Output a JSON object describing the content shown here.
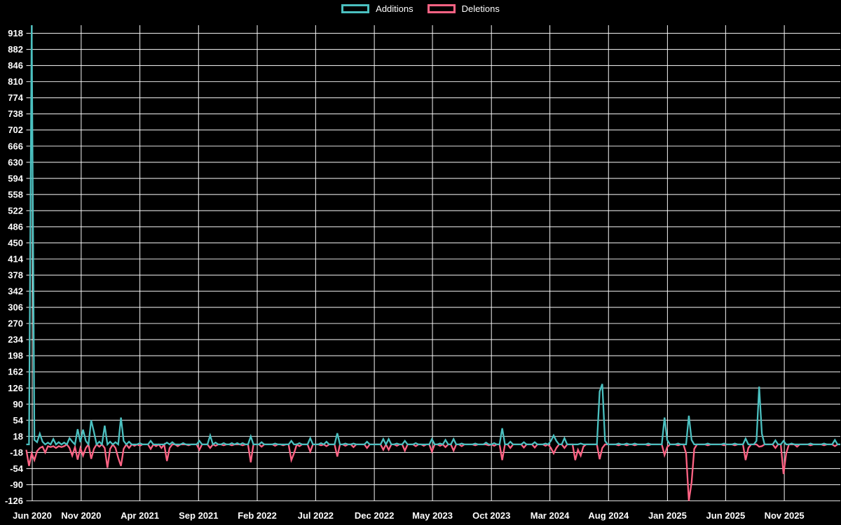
{
  "chart_data": {
    "type": "line",
    "title": "",
    "background_color": "#000000",
    "grid_color": "#ffffff",
    "grid_opacity": 0.88,
    "text_color": "#ffffff",
    "legend_position": "top-center",
    "n_points": 302,
    "point_unit": "week",
    "x_axis": {
      "label": "",
      "ticks": [
        {
          "label": "Jun 2020",
          "week_pos": 2.2
        },
        {
          "label": "Nov 2020",
          "week_pos": 20.3
        },
        {
          "label": "Apr 2021",
          "week_pos": 42.0
        },
        {
          "label": "Sep 2021",
          "week_pos": 63.7
        },
        {
          "label": "Feb 2022",
          "week_pos": 85.4
        },
        {
          "label": "Jul 2022",
          "week_pos": 107.0
        },
        {
          "label": "Dec 2022",
          "week_pos": 128.7
        },
        {
          "label": "May 2023",
          "week_pos": 150.2
        },
        {
          "label": "Oct 2023",
          "week_pos": 172.0
        },
        {
          "label": "Mar 2024",
          "week_pos": 193.6
        },
        {
          "label": "Aug 2024",
          "week_pos": 215.3
        },
        {
          "label": "Jan 2025",
          "week_pos": 237.1
        },
        {
          "label": "Jun 2025",
          "week_pos": 258.6
        },
        {
          "label": "Nov 2025",
          "week_pos": 280.3
        }
      ]
    },
    "y_axis": {
      "label": "",
      "min": -126,
      "max": 936,
      "tick_values": [
        918,
        882,
        846,
        810,
        774,
        738,
        702,
        666,
        630,
        594,
        558,
        522,
        486,
        450,
        414,
        378,
        342,
        306,
        270,
        234,
        198,
        162,
        126,
        90,
        54,
        18,
        -18,
        -54,
        -90,
        -126
      ]
    },
    "series": [
      {
        "name": "Additions",
        "color": "#4bc0c0",
        "default_value": 0,
        "points_nonzero": [
          [
            2,
            936
          ],
          [
            3,
            10
          ],
          [
            4,
            5
          ],
          [
            5,
            24
          ],
          [
            6,
            6
          ],
          [
            8,
            4
          ],
          [
            10,
            12
          ],
          [
            12,
            5
          ],
          [
            14,
            4
          ],
          [
            16,
            14
          ],
          [
            17,
            6
          ],
          [
            19,
            34
          ],
          [
            20,
            5
          ],
          [
            21,
            33
          ],
          [
            22,
            8
          ],
          [
            24,
            54
          ],
          [
            25,
            28
          ],
          [
            27,
            6
          ],
          [
            29,
            42
          ],
          [
            31,
            6
          ],
          [
            33,
            5
          ],
          [
            35,
            60
          ],
          [
            36,
            8
          ],
          [
            38,
            6
          ],
          [
            42,
            3
          ],
          [
            46,
            8
          ],
          [
            52,
            4
          ],
          [
            54,
            5
          ],
          [
            58,
            3
          ],
          [
            64,
            8
          ],
          [
            68,
            20
          ],
          [
            70,
            4
          ],
          [
            73,
            3
          ],
          [
            76,
            3
          ],
          [
            78,
            3
          ],
          [
            80,
            3
          ],
          [
            83,
            18
          ],
          [
            87,
            5
          ],
          [
            92,
            2
          ],
          [
            98,
            8
          ],
          [
            101,
            3
          ],
          [
            105,
            14
          ],
          [
            109,
            3
          ],
          [
            111,
            6
          ],
          [
            115,
            25
          ],
          [
            118,
            2
          ],
          [
            121,
            2
          ],
          [
            126,
            6
          ],
          [
            132,
            12
          ],
          [
            134,
            12
          ],
          [
            137,
            2
          ],
          [
            140,
            8
          ],
          [
            144,
            3
          ],
          [
            150,
            12
          ],
          [
            153,
            2
          ],
          [
            155,
            10
          ],
          [
            158,
            12
          ],
          [
            161,
            2
          ],
          [
            166,
            2
          ],
          [
            170,
            4
          ],
          [
            173,
            3
          ],
          [
            176,
            36
          ],
          [
            179,
            6
          ],
          [
            184,
            5
          ],
          [
            188,
            5
          ],
          [
            192,
            2
          ],
          [
            194,
            8
          ],
          [
            195,
            20
          ],
          [
            196,
            8
          ],
          [
            199,
            14
          ],
          [
            205,
            2
          ],
          [
            212,
            118
          ],
          [
            213,
            135
          ],
          [
            214,
            8
          ],
          [
            219,
            2
          ],
          [
            222,
            2
          ],
          [
            225,
            2
          ],
          [
            230,
            2
          ],
          [
            236,
            60
          ],
          [
            237,
            10
          ],
          [
            241,
            2
          ],
          [
            245,
            64
          ],
          [
            246,
            10
          ],
          [
            252,
            2
          ],
          [
            258,
            2
          ],
          [
            262,
            2
          ],
          [
            266,
            13
          ],
          [
            270,
            8
          ],
          [
            271,
            129
          ],
          [
            272,
            24
          ],
          [
            277,
            9
          ],
          [
            280,
            8
          ],
          [
            283,
            2
          ],
          [
            290,
            2
          ],
          [
            295,
            2
          ],
          [
            299,
            10
          ]
        ]
      },
      {
        "name": "Deletions",
        "color": "#ff6384",
        "default_value": 0,
        "points_nonzero": [
          [
            0,
            -12
          ],
          [
            1,
            -48
          ],
          [
            2,
            -20
          ],
          [
            3,
            -35
          ],
          [
            4,
            -15
          ],
          [
            5,
            -8
          ],
          [
            6,
            -5
          ],
          [
            7,
            -18
          ],
          [
            8,
            -4
          ],
          [
            9,
            -6
          ],
          [
            10,
            -4
          ],
          [
            11,
            -8
          ],
          [
            12,
            -4
          ],
          [
            13,
            -6
          ],
          [
            14,
            -4
          ],
          [
            16,
            -8
          ],
          [
            17,
            -25
          ],
          [
            18,
            -6
          ],
          [
            19,
            -34
          ],
          [
            20,
            -8
          ],
          [
            21,
            -25
          ],
          [
            22,
            -8
          ],
          [
            24,
            -32
          ],
          [
            25,
            -10
          ],
          [
            27,
            -5
          ],
          [
            29,
            -8
          ],
          [
            30,
            -52
          ],
          [
            31,
            -10
          ],
          [
            33,
            -8
          ],
          [
            34,
            -30
          ],
          [
            35,
            -48
          ],
          [
            36,
            -10
          ],
          [
            38,
            -8
          ],
          [
            40,
            -3
          ],
          [
            42,
            -3
          ],
          [
            46,
            -10
          ],
          [
            48,
            -4
          ],
          [
            50,
            -8
          ],
          [
            52,
            -37
          ],
          [
            53,
            -8
          ],
          [
            56,
            -4
          ],
          [
            60,
            -2
          ],
          [
            64,
            -12
          ],
          [
            68,
            -8
          ],
          [
            70,
            -3
          ],
          [
            73,
            -2
          ],
          [
            76,
            -2
          ],
          [
            80,
            -2
          ],
          [
            83,
            -40
          ],
          [
            87,
            -5
          ],
          [
            92,
            -3
          ],
          [
            95,
            -2
          ],
          [
            98,
            -35
          ],
          [
            99,
            -20
          ],
          [
            101,
            -4
          ],
          [
            105,
            -16
          ],
          [
            109,
            -2
          ],
          [
            111,
            -4
          ],
          [
            115,
            -27
          ],
          [
            118,
            -3
          ],
          [
            121,
            -6
          ],
          [
            126,
            -8
          ],
          [
            132,
            -12
          ],
          [
            134,
            -12
          ],
          [
            137,
            -3
          ],
          [
            140,
            -14
          ],
          [
            144,
            -4
          ],
          [
            147,
            -3
          ],
          [
            150,
            -16
          ],
          [
            153,
            -3
          ],
          [
            155,
            -6
          ],
          [
            158,
            -14
          ],
          [
            161,
            -4
          ],
          [
            166,
            -2
          ],
          [
            171,
            -2
          ],
          [
            173,
            -3
          ],
          [
            176,
            -35
          ],
          [
            179,
            -8
          ],
          [
            184,
            -7
          ],
          [
            188,
            -7
          ],
          [
            192,
            -3
          ],
          [
            194,
            -8
          ],
          [
            195,
            -20
          ],
          [
            196,
            -8
          ],
          [
            199,
            -8
          ],
          [
            203,
            -35
          ],
          [
            204,
            -12
          ],
          [
            205,
            -25
          ],
          [
            206,
            -5
          ],
          [
            212,
            -33
          ],
          [
            213,
            -8
          ],
          [
            219,
            -2
          ],
          [
            222,
            -2
          ],
          [
            225,
            -2
          ],
          [
            230,
            -2
          ],
          [
            236,
            -24
          ],
          [
            237,
            -6
          ],
          [
            241,
            -2
          ],
          [
            244,
            -20
          ],
          [
            245,
            -126
          ],
          [
            246,
            -85
          ],
          [
            247,
            -10
          ],
          [
            252,
            -2
          ],
          [
            258,
            -2
          ],
          [
            262,
            -2
          ],
          [
            266,
            -35
          ],
          [
            267,
            -8
          ],
          [
            271,
            -5
          ],
          [
            272,
            -4
          ],
          [
            277,
            -8
          ],
          [
            280,
            -66
          ],
          [
            281,
            -20
          ],
          [
            285,
            -5
          ],
          [
            290,
            -2
          ],
          [
            295,
            -2
          ],
          [
            299,
            -4
          ]
        ]
      }
    ]
  }
}
